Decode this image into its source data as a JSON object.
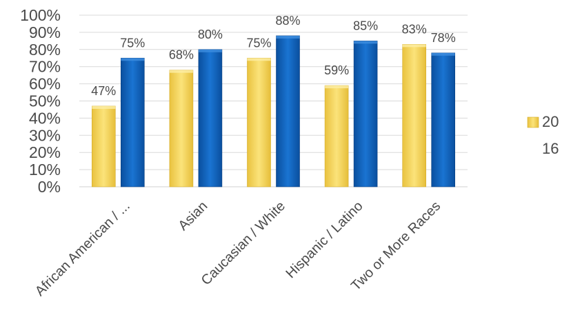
{
  "chart_data": {
    "type": "bar",
    "categories": [
      "African American / ...",
      "Asian",
      "Caucasian / White",
      "Hispanic / Latino",
      "Two or More Races"
    ],
    "series": [
      {
        "values": [
          47,
          68,
          75,
          59,
          83
        ],
        "color": "#f6d655"
      },
      {
        "values": [
          75,
          80,
          88,
          85,
          78
        ],
        "color": "#1466c0"
      }
    ],
    "data_labels": [
      [
        "47%",
        "68%",
        "75%",
        "59%",
        "83%"
      ],
      [
        "75%",
        "80%",
        "88%",
        "85%",
        "78%"
      ]
    ],
    "y_ticks": [
      "0%",
      "10%",
      "20%",
      "30%",
      "40%",
      "50%",
      "60%",
      "70%",
      "80%",
      "90%",
      "100%"
    ],
    "ylim": [
      0,
      100
    ],
    "grid": true,
    "legend": {
      "placement": "right",
      "entries": [
        "20",
        "16"
      ]
    },
    "title": "",
    "xlabel": "",
    "ylabel": ""
  }
}
